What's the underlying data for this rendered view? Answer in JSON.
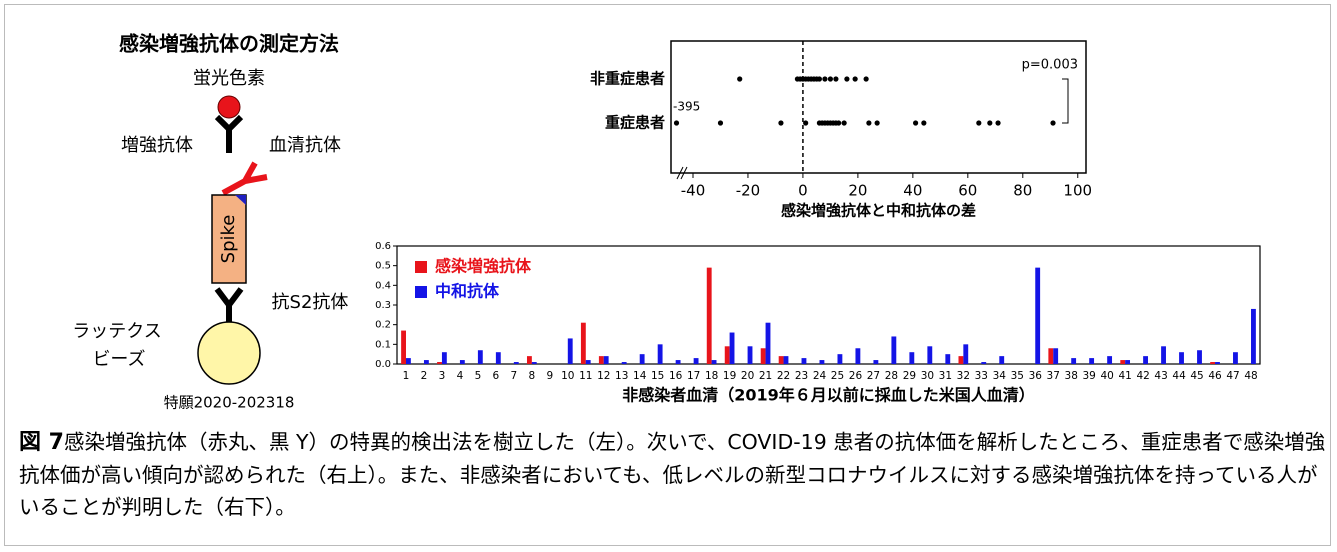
{
  "diagram": {
    "title": "感染増強抗体の測定方法",
    "labels": [
      "蛍光色素",
      "増強抗体",
      "血清抗体",
      "Spike",
      "抗S2抗体",
      "ラッテクス",
      "ビーズ"
    ],
    "patent": "特願2020-202318"
  },
  "chart_data": [
    {
      "type": "strip",
      "categories": [
        "非重症患者",
        "重症患者"
      ],
      "values": [
        [
          -23,
          -2,
          -1,
          0,
          1,
          2,
          3,
          4,
          5,
          6,
          8,
          10,
          12,
          16,
          19,
          23
        ],
        [
          -395,
          -30,
          -8,
          1,
          6,
          7,
          8,
          9,
          10,
          11,
          12,
          13,
          15,
          24,
          27,
          41,
          44,
          64,
          68,
          71,
          91
        ]
      ],
      "color": "#000000",
      "xlim": [
        -397,
        103
      ],
      "axis_break": [
        -393,
        -44
      ],
      "xticks": [
        -40,
        -20,
        0,
        20,
        40,
        60,
        80,
        100
      ],
      "outlier_label": -395,
      "reference_line": 0,
      "annotation": "p=0.003",
      "xlabel": "感染増強抗体と中和抗体の差"
    },
    {
      "type": "bar",
      "categories": [
        "1",
        "2",
        "3",
        "4",
        "5",
        "6",
        "7",
        "8",
        "9",
        "10",
        "11",
        "12",
        "13",
        "14",
        "15",
        "16",
        "17",
        "18",
        "19",
        "20",
        "21",
        "22",
        "23",
        "24",
        "25",
        "26",
        "27",
        "28",
        "29",
        "30",
        "31",
        "32",
        "33",
        "34",
        "35",
        "36",
        "37",
        "38",
        "39",
        "40",
        "41",
        "42",
        "43",
        "44",
        "45",
        "46",
        "47",
        "48"
      ],
      "series": [
        {
          "name": "感染増強抗体",
          "color": "#e8141b",
          "values": [
            0.17,
            0,
            0.01,
            0,
            0,
            0,
            0,
            0.04,
            0,
            0,
            0.21,
            0.04,
            0,
            0,
            0,
            0,
            0,
            0.49,
            0.09,
            0,
            0.08,
            0.04,
            0,
            0,
            0,
            0,
            0,
            0,
            0,
            0,
            0,
            0.04,
            0,
            0,
            0,
            0,
            0.08,
            0,
            0,
            0,
            0.02,
            0,
            0,
            0,
            0,
            0.01,
            0,
            0
          ]
        },
        {
          "name": "中和抗体",
          "color": "#1414e6",
          "values": [
            0.03,
            0.02,
            0.06,
            0.02,
            0.07,
            0.06,
            0.01,
            0.01,
            0,
            0.13,
            0.02,
            0.04,
            0.01,
            0.05,
            0.1,
            0.02,
            0.03,
            0.02,
            0.16,
            0.09,
            0.21,
            0.04,
            0.03,
            0.02,
            0.05,
            0.08,
            0.02,
            0.14,
            0.06,
            0.09,
            0.05,
            0.1,
            0.01,
            0.04,
            0,
            0.49,
            0.08,
            0.03,
            0.03,
            0.04,
            0.02,
            0.04,
            0.09,
            0.06,
            0.07,
            0.01,
            0.06,
            0.28
          ]
        }
      ],
      "ylim": [
        0,
        0.6
      ],
      "yticks": [
        {
          "value": 0,
          "label": "0.0"
        },
        0.1,
        0.2,
        0.3,
        0.4,
        0.5,
        0.6
      ],
      "legend": "upper left",
      "xlabel": "非感染者血清（2019年６月以前に採血した米国人血清）"
    }
  ],
  "caption": {
    "label": "図 7",
    "text": "感染増強抗体（赤丸、黒 Y）の特異的検出法を樹立した（左）。次いで、COVID-19 患者の抗体価を解析したところ、重症患者で感染増強抗体価が高い傾向が認められた（右上）。また、非感染者においても、低レベルの新型コロナウイルスに対する感染増強抗体を持っている人がいることが判明した（右下）。"
  }
}
